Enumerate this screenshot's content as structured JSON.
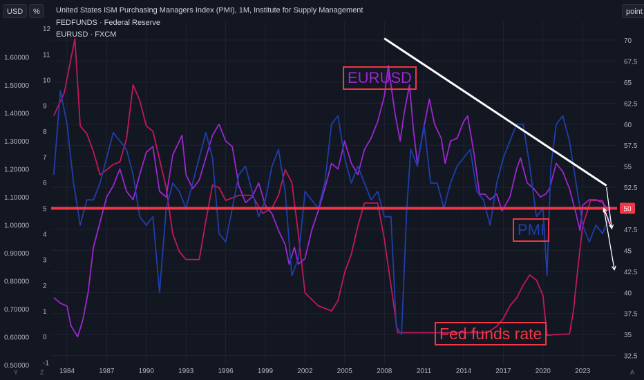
{
  "header": {
    "left_unit": "USD",
    "mid_unit": "%",
    "right_unit": "point",
    "legend": [
      "United States ISM Purchasing Managers Index (PMI), 1M, Institute for Supply Management",
      "FEDFUNDS · Federal Reserve",
      "EURUSD · FXCM"
    ]
  },
  "annotations": {
    "eurusd": "EURUSD",
    "pmi": "PMI",
    "fed": "Fed funds rate",
    "level_badge": "50"
  },
  "corner_labels": [
    "Y",
    "Z",
    "A"
  ],
  "colors": {
    "background": "#131722",
    "pmi": "#1e3faa",
    "fedfunds": "#c2185b",
    "eurusd": "#9c27d0",
    "level_line": "#f23645",
    "trendline": "#ffffff"
  },
  "chart_data": {
    "type": "line",
    "x_range": [
      1982.8,
      2025.6
    ],
    "x_ticks": [
      "1984",
      "1987",
      "1990",
      "1993",
      "1996",
      "1999",
      "2002",
      "2005",
      "2008",
      "2011",
      "2014",
      "2017",
      "2020",
      "2023"
    ],
    "axes": {
      "usd": {
        "range": [
          0.5,
          1.73
        ],
        "ticks": [
          "1.60000",
          "1.50000",
          "1.40000",
          "1.30000",
          "1.20000",
          "1.10000",
          "1.00000",
          "0.90000",
          "0.80000",
          "0.70000",
          "0.60000",
          "0.50000"
        ]
      },
      "pct": {
        "range": [
          -1.1,
          12.3
        ],
        "ticks": [
          "12",
          "11",
          "10",
          "9",
          "8",
          "7",
          "6",
          "5",
          "4",
          "3",
          "2",
          "1",
          "0",
          "-1"
        ]
      },
      "point": {
        "range": [
          31.4,
          72.3
        ],
        "ticks": [
          "70",
          "67.5",
          "65",
          "62.5",
          "60",
          "57.5",
          "55",
          "52.5",
          "50",
          "47.5",
          "45",
          "42.5",
          "40",
          "37.5",
          "35",
          "32.5"
        ]
      }
    },
    "series": [
      {
        "name": "United States ISM Purchasing Managers Index (PMI), 1M, Institute for Supply Management",
        "axis": "point",
        "x": [
          1983.0,
          1983.5,
          1984.0,
          1984.5,
          1985.0,
          1985.5,
          1986.0,
          1986.5,
          1987.0,
          1987.5,
          1988.0,
          1988.5,
          1989.0,
          1989.5,
          1990.0,
          1990.5,
          1991.0,
          1991.5,
          1992.0,
          1992.5,
          1993.0,
          1993.5,
          1994.0,
          1994.5,
          1995.0,
          1995.5,
          1996.0,
          1996.5,
          1997.0,
          1997.5,
          1998.0,
          1998.5,
          1999.0,
          1999.5,
          2000.0,
          2000.5,
          2001.0,
          2001.5,
          2002.0,
          2002.5,
          2003.0,
          2003.5,
          2004.0,
          2004.5,
          2005.0,
          2005.5,
          2006.0,
          2006.5,
          2007.0,
          2007.5,
          2008.0,
          2008.5,
          2008.9,
          2009.3,
          2009.7,
          2010.0,
          2010.5,
          2011.0,
          2011.5,
          2012.0,
          2012.5,
          2013.0,
          2013.5,
          2014.0,
          2014.5,
          2015.0,
          2015.5,
          2016.0,
          2016.5,
          2017.0,
          2017.5,
          2018.0,
          2018.5,
          2019.0,
          2019.5,
          2020.0,
          2020.3,
          2020.6,
          2021.0,
          2021.5,
          2022.0,
          2022.5,
          2023.0,
          2023.5,
          2024.0,
          2024.5,
          2025.0
        ],
        "y": [
          54,
          64,
          60,
          53,
          48,
          51,
          51,
          53,
          56,
          59,
          58,
          57,
          54,
          49,
          48,
          49,
          40,
          50,
          53,
          52,
          50,
          53,
          56,
          59,
          56,
          47,
          46,
          50,
          54,
          55,
          52,
          49,
          51,
          55,
          57,
          52,
          42,
          44,
          52,
          51,
          50,
          53,
          60,
          61,
          56,
          53,
          55,
          53,
          51,
          52,
          49,
          49,
          36,
          35,
          50,
          57,
          55,
          60,
          53,
          53,
          50,
          53,
          55,
          56,
          57,
          52,
          51,
          48,
          53,
          56,
          58,
          60,
          60,
          55,
          49,
          50,
          42,
          55,
          60,
          61,
          58,
          53,
          48,
          46,
          48,
          47,
          49
        ]
      },
      {
        "name": "FEDFUNDS · Federal Reserve",
        "axis": "pct",
        "x": [
          1983.0,
          1983.8,
          1984.6,
          1985.0,
          1985.5,
          1986.0,
          1986.5,
          1987.0,
          1987.5,
          1988.0,
          1988.5,
          1989.0,
          1989.5,
          1990.0,
          1990.5,
          1991.0,
          1991.5,
          1992.0,
          1992.5,
          1993.0,
          1994.0,
          1994.5,
          1995.0,
          1995.5,
          1996.0,
          1997.0,
          1998.0,
          1998.8,
          1999.5,
          2000.0,
          2000.5,
          2001.0,
          2001.5,
          2002.0,
          2003.0,
          2004.0,
          2004.5,
          2005.0,
          2005.5,
          2006.0,
          2006.5,
          2007.5,
          2008.0,
          2008.5,
          2009.0,
          2015.8,
          2016.5,
          2017.0,
          2017.5,
          2018.0,
          2018.5,
          2019.0,
          2019.5,
          2020.0,
          2020.3,
          2021.0,
          2022.0,
          2022.3,
          2022.6,
          2023.0,
          2023.6,
          2024.5,
          2025.0
        ],
        "y": [
          8.6,
          9.5,
          11.6,
          8.2,
          7.9,
          7.2,
          6.3,
          6.5,
          6.7,
          6.8,
          7.7,
          9.8,
          9.2,
          8.2,
          8.0,
          6.9,
          5.8,
          4.0,
          3.3,
          3.0,
          3.0,
          4.5,
          5.9,
          5.8,
          5.3,
          5.5,
          5.5,
          4.8,
          5.0,
          5.5,
          6.5,
          6.0,
          4.0,
          1.7,
          1.2,
          1.0,
          1.4,
          2.5,
          3.2,
          4.3,
          5.2,
          5.2,
          3.8,
          2.0,
          0.15,
          0.15,
          0.4,
          0.7,
          1.2,
          1.5,
          2.0,
          2.4,
          2.2,
          1.6,
          0.05,
          0.08,
          0.1,
          1.0,
          2.5,
          4.3,
          5.3,
          5.3,
          4.4
        ]
      },
      {
        "name": "EURUSD · FXCM",
        "axis": "usd",
        "x": [
          1983.0,
          1983.5,
          1984.0,
          1984.3,
          1984.8,
          1985.2,
          1985.6,
          1986.0,
          1986.5,
          1987.0,
          1987.5,
          1988.0,
          1988.5,
          1989.0,
          1989.5,
          1990.0,
          1990.5,
          1991.0,
          1991.5,
          1992.0,
          1992.7,
          1993.0,
          1993.5,
          1994.0,
          1994.5,
          1995.0,
          1995.5,
          1996.0,
          1996.5,
          1997.0,
          1997.5,
          1998.0,
          1998.5,
          1999.0,
          1999.5,
          2000.0,
          2000.5,
          2000.8,
          2001.2,
          2001.5,
          2002.0,
          2002.5,
          2003.0,
          2003.5,
          2004.0,
          2004.5,
          2005.0,
          2005.5,
          2006.0,
          2006.5,
          2007.0,
          2007.5,
          2008.0,
          2008.3,
          2008.8,
          2009.2,
          2009.5,
          2009.9,
          2010.2,
          2010.5,
          2011.0,
          2011.4,
          2011.8,
          2012.3,
          2012.6,
          2013.0,
          2013.5,
          2014.0,
          2014.3,
          2014.8,
          2015.2,
          2015.6,
          2016.0,
          2016.5,
          2016.9,
          2017.5,
          2018.0,
          2018.3,
          2018.8,
          2019.3,
          2019.8,
          2020.2,
          2020.5,
          2021.0,
          2021.5,
          2022.0,
          2022.5,
          2022.8,
          2023.0,
          2023.5,
          2024.0,
          2024.5,
          2025.0
        ],
        "y": [
          0.74,
          0.72,
          0.71,
          0.64,
          0.6,
          0.66,
          0.76,
          0.92,
          1.01,
          1.1,
          1.14,
          1.2,
          1.12,
          1.09,
          1.18,
          1.26,
          1.28,
          1.12,
          1.1,
          1.25,
          1.32,
          1.18,
          1.13,
          1.16,
          1.24,
          1.32,
          1.36,
          1.3,
          1.28,
          1.14,
          1.08,
          1.1,
          1.15,
          1.07,
          1.04,
          0.98,
          0.93,
          0.86,
          0.92,
          0.86,
          0.88,
          0.98,
          1.05,
          1.13,
          1.22,
          1.2,
          1.3,
          1.22,
          1.18,
          1.27,
          1.31,
          1.37,
          1.46,
          1.57,
          1.4,
          1.3,
          1.4,
          1.5,
          1.34,
          1.22,
          1.35,
          1.45,
          1.36,
          1.31,
          1.22,
          1.3,
          1.31,
          1.37,
          1.39,
          1.25,
          1.11,
          1.11,
          1.09,
          1.11,
          1.05,
          1.1,
          1.2,
          1.24,
          1.15,
          1.13,
          1.1,
          1.11,
          1.13,
          1.22,
          1.19,
          1.13,
          1.04,
          0.98,
          1.07,
          1.09,
          1.09,
          1.08,
          1.05
        ]
      }
    ],
    "level_line": {
      "axis": "point",
      "value": 50
    },
    "trendline": {
      "axis": "point",
      "from": [
        2008.0,
        70.2
      ],
      "to": [
        2024.8,
        52.7
      ]
    },
    "arrows": [
      {
        "from": [
          2024.8,
          52.5
        ],
        "to": [
          2025.2,
          47.6
        ]
      },
      {
        "from": [
          2025.2,
          47.6
        ],
        "to": [
          2024.6,
          50.0
        ]
      },
      {
        "from": [
          2024.6,
          50.0
        ],
        "to": [
          2025.4,
          42.7
        ]
      }
    ]
  }
}
